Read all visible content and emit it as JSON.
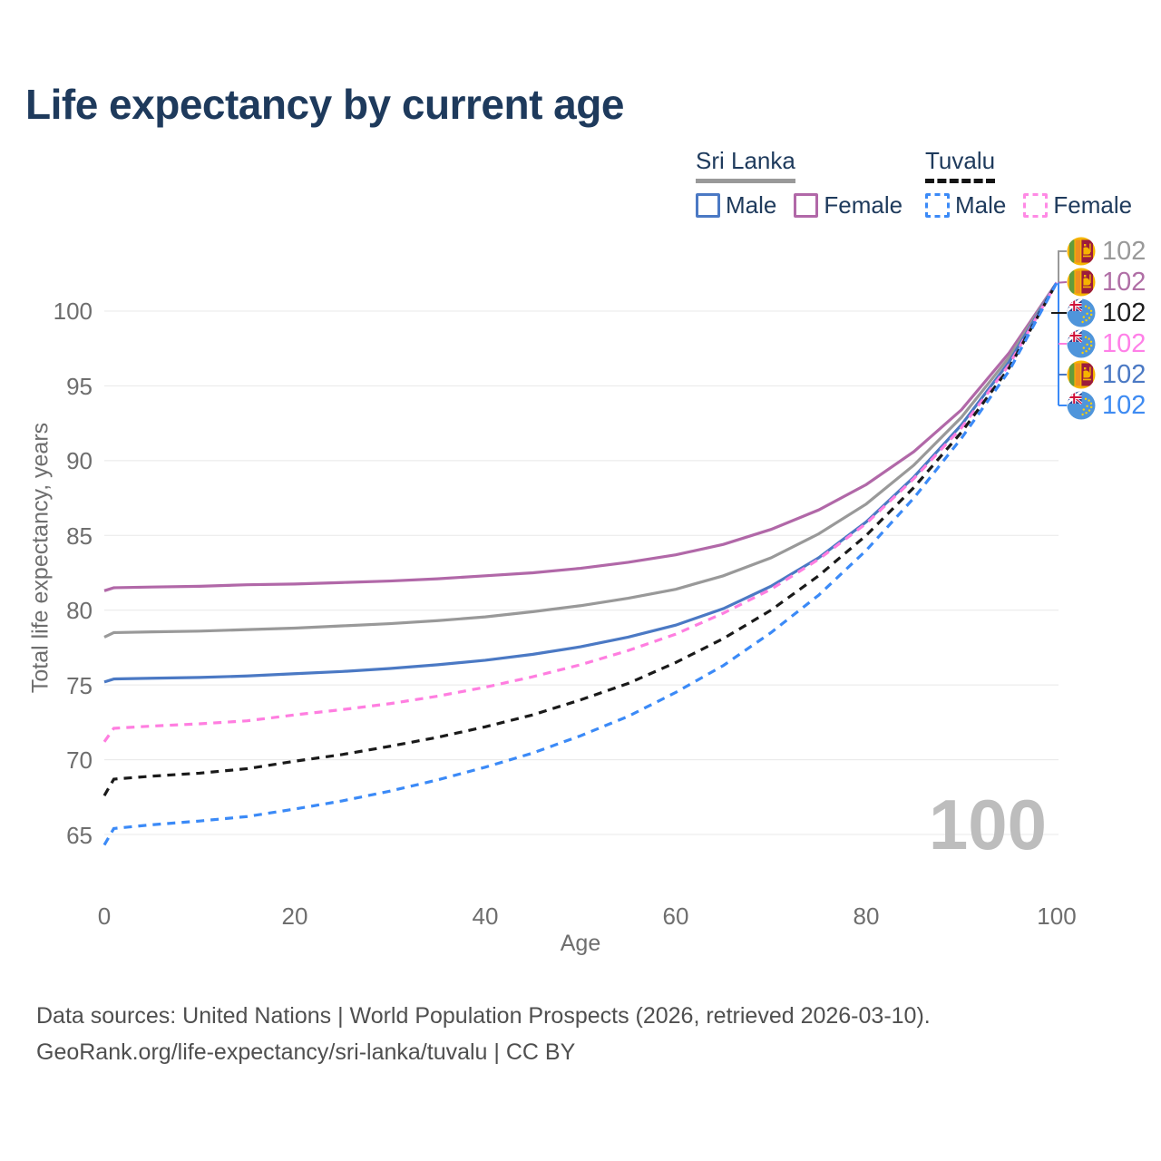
{
  "title": "Life expectancy by current age",
  "legend": {
    "groups": [
      {
        "country": "Sri Lanka",
        "line_style": "solid",
        "underline_color": "#999999",
        "items": [
          {
            "label": "Male",
            "color": "#4b79c4"
          },
          {
            "label": "Female",
            "color": "#b168a8"
          }
        ]
      },
      {
        "country": "Tuvalu",
        "line_style": "dashed",
        "underline_color": "#141414",
        "items": [
          {
            "label": "Male",
            "color": "#3b8af7"
          },
          {
            "label": "Female",
            "color": "#ff8ae5"
          }
        ]
      }
    ]
  },
  "watermark": {
    "frame_label": "100"
  },
  "footer": {
    "line1": "Data sources: United Nations | World Population Prospects (2026, retrieved 2026-03-10).",
    "line2": "GeoRank.org/life-expectancy/sri-lanka/tuvalu | CC BY"
  },
  "chart_data": {
    "type": "line",
    "title": "Life expectancy by current age",
    "xlabel": "Age",
    "ylabel": "Total life expectancy, years",
    "x_tick_labels": [
      "0",
      "20",
      "40",
      "60",
      "80",
      "100"
    ],
    "y_tick_labels": [
      "100",
      "95",
      "90",
      "85",
      "80",
      "75",
      "70",
      "65"
    ],
    "xlim": [
      0,
      100
    ],
    "ylim": [
      63,
      103
    ],
    "grid": "horizontal-only",
    "legend_position": "top-right",
    "ages": [
      0,
      1,
      5,
      10,
      15,
      20,
      25,
      30,
      35,
      40,
      45,
      50,
      55,
      60,
      65,
      70,
      75,
      80,
      85,
      90,
      95,
      100
    ],
    "series": [
      {
        "name": "Sri Lanka Female",
        "country": "Sri Lanka",
        "sex": "Female",
        "color": "#b168a8",
        "dash": false,
        "end_label": "102",
        "values": [
          81.3,
          81.5,
          81.55,
          81.6,
          81.7,
          81.75,
          81.85,
          81.95,
          82.1,
          82.3,
          82.5,
          82.8,
          83.2,
          83.7,
          84.4,
          85.4,
          86.7,
          88.4,
          90.6,
          93.4,
          97.2,
          101.9
        ]
      },
      {
        "name": "Sri Lanka Both sexes",
        "country": "Sri Lanka",
        "sex": "Both",
        "color": "#999999",
        "dash": false,
        "end_label": "102",
        "values": [
          78.2,
          78.5,
          78.55,
          78.6,
          78.7,
          78.8,
          78.95,
          79.1,
          79.3,
          79.55,
          79.9,
          80.3,
          80.8,
          81.4,
          82.3,
          83.5,
          85.1,
          87.1,
          89.7,
          92.9,
          96.9,
          101.9
        ]
      },
      {
        "name": "Sri Lanka Male",
        "country": "Sri Lanka",
        "sex": "Male",
        "color": "#4b79c4",
        "dash": false,
        "end_label": "102",
        "values": [
          75.2,
          75.4,
          75.45,
          75.5,
          75.6,
          75.75,
          75.9,
          76.1,
          76.35,
          76.65,
          77.05,
          77.55,
          78.2,
          79.0,
          80.1,
          81.6,
          83.5,
          85.9,
          88.9,
          92.4,
          96.6,
          101.9
        ]
      },
      {
        "name": "Tuvalu Female",
        "country": "Tuvalu",
        "sex": "Female",
        "color": "#ff7ee0",
        "dash": true,
        "end_label": "102",
        "values": [
          71.2,
          72.1,
          72.25,
          72.4,
          72.6,
          73.0,
          73.35,
          73.75,
          74.25,
          74.85,
          75.55,
          76.35,
          77.3,
          78.4,
          79.8,
          81.4,
          83.4,
          85.8,
          88.8,
          92.2,
          96.4,
          101.9
        ]
      },
      {
        "name": "Tuvalu Both sexes",
        "country": "Tuvalu",
        "sex": "Both",
        "color": "#1a1a1a",
        "dash": true,
        "end_label": "102",
        "values": [
          67.6,
          68.7,
          68.9,
          69.1,
          69.4,
          69.9,
          70.35,
          70.9,
          71.5,
          72.2,
          73.0,
          74.0,
          75.1,
          76.5,
          78.1,
          80.0,
          82.3,
          85.0,
          88.2,
          91.9,
          96.2,
          101.9
        ]
      },
      {
        "name": "Tuvalu Male",
        "country": "Tuvalu",
        "sex": "Male",
        "color": "#3b8af7",
        "dash": true,
        "end_label": "102",
        "values": [
          64.3,
          65.4,
          65.65,
          65.9,
          66.2,
          66.7,
          67.25,
          67.9,
          68.65,
          69.5,
          70.45,
          71.6,
          72.9,
          74.5,
          76.3,
          78.5,
          81.0,
          84.0,
          87.5,
          91.5,
          96.0,
          101.9
        ]
      }
    ]
  }
}
